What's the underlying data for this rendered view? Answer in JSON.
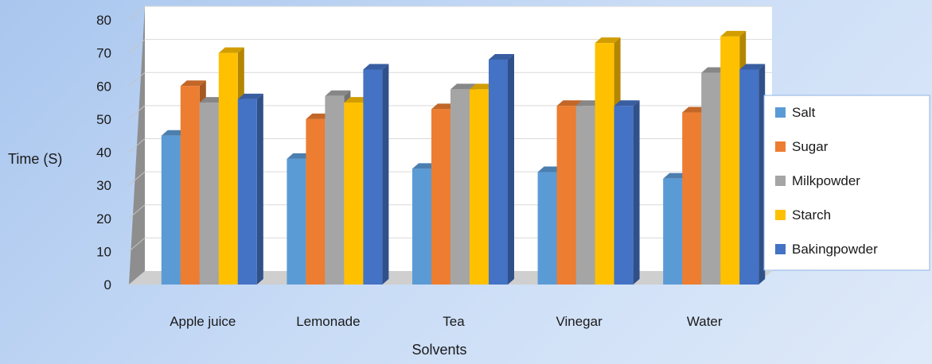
{
  "chart_data": {
    "type": "bar",
    "title": "",
    "xlabel": "Solvents",
    "ylabel": "Time (S)",
    "ylim": [
      0,
      80
    ],
    "yticks": [
      0,
      10,
      20,
      30,
      40,
      50,
      60,
      70,
      80
    ],
    "grid": true,
    "legend_position": "right",
    "categories": [
      "Apple juice",
      "Lemonade",
      "Tea",
      "Vinegar",
      "Water"
    ],
    "series": [
      {
        "name": "Salt",
        "color": "#5b9bd5",
        "values": [
          45,
          38,
          35,
          34,
          32
        ]
      },
      {
        "name": "Sugar",
        "color": "#ed7d31",
        "values": [
          60,
          50,
          53,
          54,
          52
        ]
      },
      {
        "name": "Milkpowder",
        "color": "#a5a5a5",
        "values": [
          55,
          57,
          59,
          54,
          64
        ]
      },
      {
        "name": "Starch",
        "color": "#ffc000",
        "values": [
          70,
          55,
          59,
          73,
          75
        ]
      },
      {
        "name": "Bakingpowder",
        "color": "#4472c4",
        "values": [
          56,
          65,
          68,
          54,
          65
        ]
      }
    ]
  }
}
